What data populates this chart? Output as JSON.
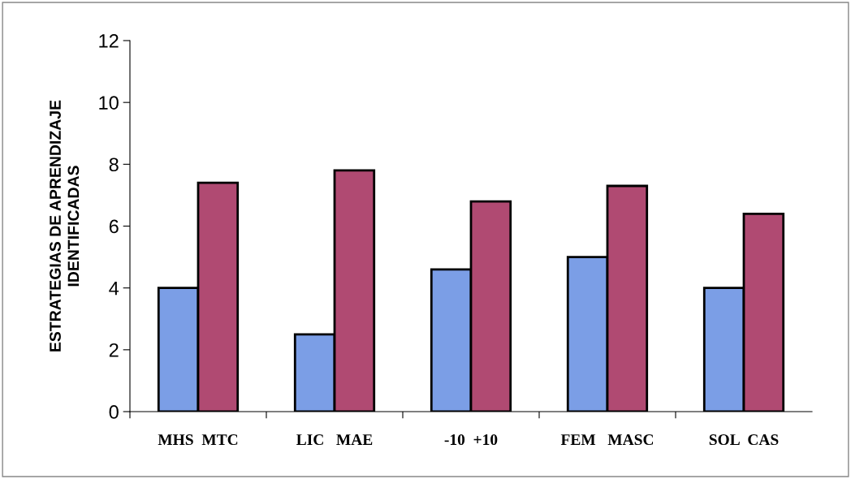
{
  "chart_data": {
    "type": "bar",
    "ylabel": "ESTRATEGIAS DE APRENDIZAJE\nIDENTIFICADAS",
    "categories": [
      "MHS  MTC",
      "LIC   MAE",
      "-10  +10",
      "FEM   MASC",
      "SOL  CAS"
    ],
    "series": [
      {
        "color": "#7b9ee6",
        "values": [
          4.0,
          2.5,
          4.6,
          5.0,
          4.0
        ]
      },
      {
        "color": "#b04a72",
        "values": [
          7.4,
          7.8,
          6.8,
          7.3,
          6.4
        ]
      }
    ],
    "ylim": [
      0,
      12
    ],
    "yticks": [
      0,
      2,
      4,
      6,
      8,
      10,
      12
    ],
    "grid": false,
    "legend": false
  }
}
